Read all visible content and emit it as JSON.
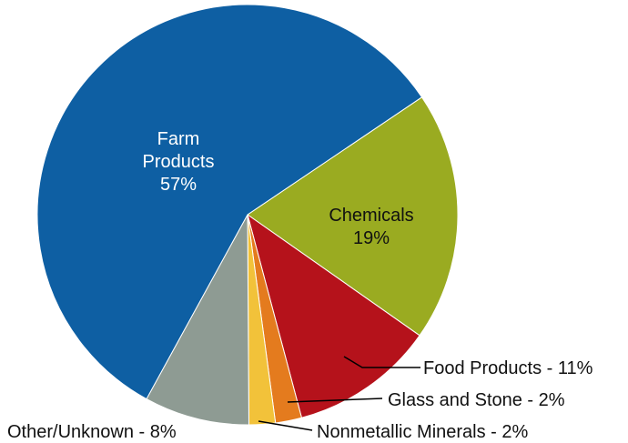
{
  "chart_data": {
    "type": "pie",
    "title": "",
    "start_angle_deg": 0,
    "slices": [
      {
        "name": "Chemicals",
        "value": 19,
        "color": "#9AAB21",
        "label_lines": [
          "Chemicals",
          "19%"
        ],
        "label_color": "#111111",
        "label_style": "inside"
      },
      {
        "name": "Food Products",
        "value": 11,
        "color": "#B5121B",
        "label_lines": [
          "Food Products - 11%"
        ],
        "label_style": "outside"
      },
      {
        "name": "Glass and Stone",
        "value": 2,
        "color": "#E47B1E",
        "label_lines": [
          "Glass and Stone - 2%"
        ],
        "label_style": "outside"
      },
      {
        "name": "Nonmetallic Minerals",
        "value": 2,
        "color": "#F2C23A",
        "label_lines": [
          "Nonmetallic Minerals - 2%"
        ],
        "label_style": "outside"
      },
      {
        "name": "Other/Unknown",
        "value": 8,
        "color": "#8E9B93",
        "label_lines": [
          "Other/Unknown - 8%"
        ],
        "label_style": "outside"
      },
      {
        "name": "Farm Products",
        "value": 57,
        "color": "#0E5FA3",
        "label_lines": [
          "Farm",
          "Products",
          "57%"
        ],
        "label_color": "#ffffff",
        "label_style": "inside"
      }
    ]
  }
}
